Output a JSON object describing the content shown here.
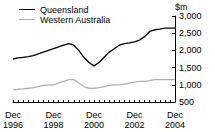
{
  "chart_data": {
    "type": "line",
    "y_label": "$m",
    "categories": [
      "Dec 1996",
      null,
      null,
      null,
      null,
      null,
      null,
      null,
      "Dec 1998",
      null,
      null,
      null,
      null,
      null,
      null,
      null,
      "Dec 2000",
      null,
      null,
      null,
      null,
      null,
      null,
      null,
      "Dec 2002",
      null,
      null,
      null,
      null,
      null,
      null,
      null,
      "Dec 2004"
    ],
    "series": [
      {
        "name": "Queensland",
        "color": "#000000",
        "values": [
          1750,
          1780,
          1800,
          1820,
          1850,
          1900,
          1950,
          2000,
          2050,
          2100,
          2150,
          2200,
          2150,
          2000,
          1800,
          1650,
          1550,
          1650,
          1800,
          1950,
          2050,
          2150,
          2200,
          2220,
          2250,
          2300,
          2400,
          2550,
          2600,
          2620,
          2650,
          2650,
          2650
        ]
      },
      {
        "name": "Western Australia",
        "color": "#b0b0b0",
        "values": [
          850,
          870,
          880,
          900,
          920,
          950,
          980,
          1000,
          1000,
          1050,
          1100,
          1150,
          1150,
          1050,
          950,
          900,
          900,
          920,
          950,
          980,
          1000,
          1000,
          1020,
          1050,
          1080,
          1100,
          1100,
          1120,
          1150,
          1150,
          1150,
          1150,
          1150
        ]
      }
    ],
    "ylim": [
      500,
      3000
    ],
    "yticks": [
      500,
      1000,
      1500,
      2000,
      2500,
      3000
    ],
    "grid": false,
    "legend": "top-left"
  }
}
